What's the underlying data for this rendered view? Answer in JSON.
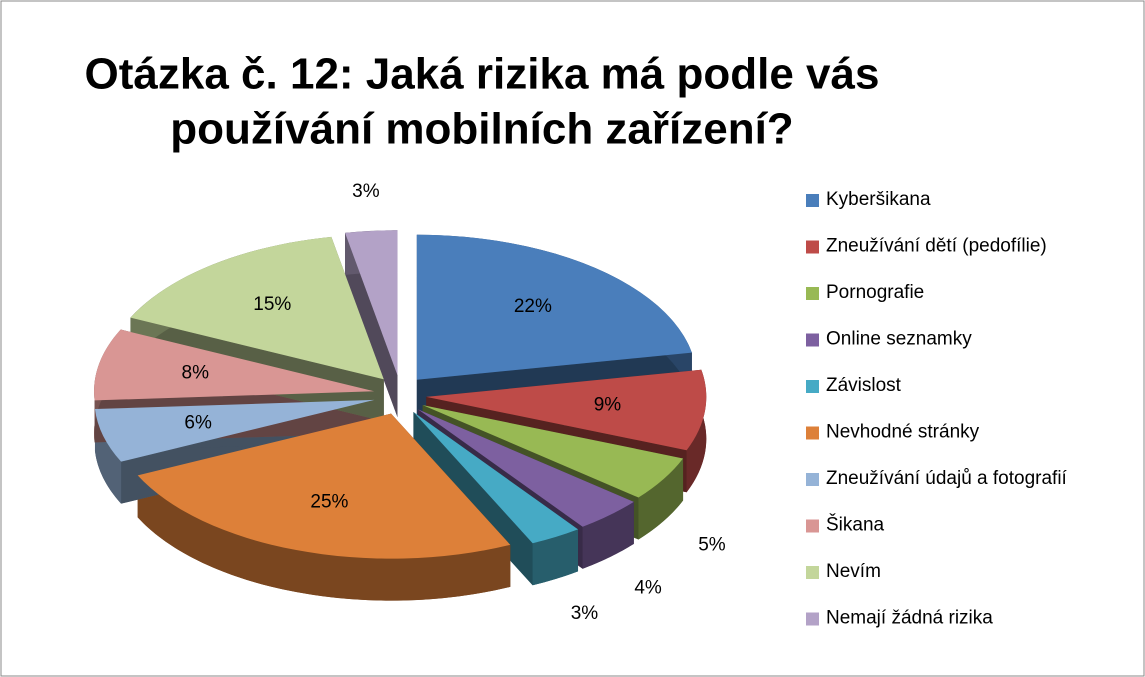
{
  "chart_data": {
    "type": "pie",
    "title": [
      "Otázka č. 12: Jaká rizika má podle vás",
      "používání mobilních zařízení?"
    ],
    "categories": [
      "Kyberšikana",
      "Zneužívání dětí (pedofílie)",
      "Pornografie",
      "Online seznamky",
      "Závislost",
      "Nevhodné stránky",
      "Zneužívání údajů a fotografií",
      "Šikana",
      "Nevím",
      "Nemají žádná rizika"
    ],
    "values": [
      22,
      9,
      5,
      4,
      3,
      25,
      6,
      8,
      15,
      3
    ],
    "value_labels": [
      "22%",
      "9%",
      "5%",
      "4%",
      "3%",
      "25%",
      "6%",
      "8%",
      "15%",
      "3%"
    ],
    "colors": [
      "#4a7ebb",
      "#be4b48",
      "#98b954",
      "#7d60a0",
      "#46aac5",
      "#dd8039",
      "#95b3d7",
      "#d99694",
      "#c3d69b",
      "#b3a2c7"
    ],
    "legend": "right"
  }
}
